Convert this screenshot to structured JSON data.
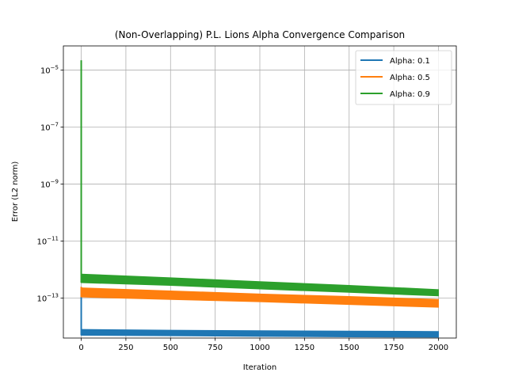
{
  "chart_data": {
    "type": "line",
    "title": "(Non-Overlapping) P.L. Lions Alpha Convergence Comparison",
    "xlabel": "Iteration",
    "ylabel": "Error (L2 norm)",
    "xlim": [
      -100,
      2100
    ],
    "ylim": [
      4e-15,
      7e-05
    ],
    "yscale": "log",
    "grid": true,
    "legend_position": "top-right",
    "x_ticks": [
      {
        "value": 0,
        "label": "0"
      },
      {
        "value": 250,
        "label": "250"
      },
      {
        "value": 500,
        "label": "500"
      },
      {
        "value": 750,
        "label": "750"
      },
      {
        "value": 1000,
        "label": "1000"
      },
      {
        "value": 1250,
        "label": "1250"
      },
      {
        "value": 1500,
        "label": "1500"
      },
      {
        "value": 1750,
        "label": "1750"
      },
      {
        "value": 2000,
        "label": "2000"
      }
    ],
    "y_ticks": [
      {
        "exp": -5,
        "label": "10",
        "sup": "−5"
      },
      {
        "exp": -7,
        "label": "10",
        "sup": "−7"
      },
      {
        "exp": -9,
        "label": "10",
        "sup": "−9"
      },
      {
        "exp": -11,
        "label": "10",
        "sup": "−11"
      },
      {
        "exp": -13,
        "label": "10",
        "sup": "−13"
      }
    ],
    "series": [
      {
        "name": "Alpha: 0.1",
        "color": "#1f77b4",
        "initial": {
          "x": 0,
          "y": 2e-13
        },
        "band": [
          {
            "x": 0,
            "lo": 5e-15,
            "hi": 8e-15
          },
          {
            "x": 500,
            "lo": 4.8e-15,
            "hi": 7.5e-15
          },
          {
            "x": 1000,
            "lo": 4.6e-15,
            "hi": 7.2e-15
          },
          {
            "x": 1500,
            "lo": 4.4e-15,
            "hi": 7e-15
          },
          {
            "x": 2000,
            "lo": 4.3e-15,
            "hi": 6.8e-15
          }
        ]
      },
      {
        "name": "Alpha: 0.5",
        "color": "#ff7f0e",
        "initial": {
          "x": 0,
          "y": 2.5e-13
        },
        "band": [
          {
            "x": 0,
            "lo": 1.1e-13,
            "hi": 2.3e-13
          },
          {
            "x": 500,
            "lo": 9e-14,
            "hi": 1.8e-13
          },
          {
            "x": 1000,
            "lo": 7.5e-14,
            "hi": 1.4e-13
          },
          {
            "x": 1500,
            "lo": 6e-14,
            "hi": 1.15e-13
          },
          {
            "x": 2000,
            "lo": 4.8e-14,
            "hi": 9e-14
          }
        ]
      },
      {
        "name": "Alpha: 0.9",
        "color": "#2ca02c",
        "initial": {
          "x": 0,
          "y": 2.2e-05
        },
        "band": [
          {
            "x": 0,
            "lo": 3.5e-13,
            "hi": 7e-13
          },
          {
            "x": 500,
            "lo": 2.8e-13,
            "hi": 5.2e-13
          },
          {
            "x": 1000,
            "lo": 2.1e-13,
            "hi": 3.8e-13
          },
          {
            "x": 1500,
            "lo": 1.6e-13,
            "hi": 2.8e-13
          },
          {
            "x": 2000,
            "lo": 1.2e-13,
            "hi": 2e-13
          }
        ]
      }
    ]
  }
}
